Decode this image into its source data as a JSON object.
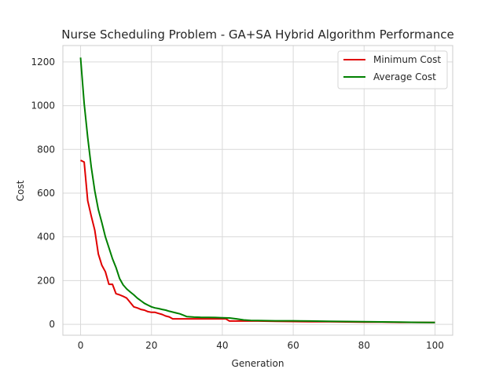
{
  "chart_data": {
    "type": "line",
    "title": "Nurse Scheduling Problem - GA+SA Hybrid Algorithm Performance",
    "xlabel": "Generation",
    "ylabel": "Cost",
    "xlim": [
      -5,
      105
    ],
    "ylim": [
      -50,
      1275
    ],
    "xticks": [
      0,
      20,
      40,
      60,
      80,
      100
    ],
    "yticks": [
      0,
      200,
      400,
      600,
      800,
      1000,
      1200
    ],
    "grid": true,
    "legend_position": "top-right",
    "series": [
      {
        "name": "Minimum Cost",
        "color": "#e00000",
        "x": [
          0,
          1,
          2,
          3,
          4,
          5,
          6,
          7,
          8,
          9,
          10,
          11,
          12,
          13,
          14,
          15,
          16,
          17,
          18,
          19,
          20,
          21,
          22,
          23,
          24,
          25,
          26,
          27,
          28,
          29,
          30,
          32,
          34,
          36,
          38,
          40,
          41,
          42,
          44,
          46,
          48,
          50,
          55,
          60,
          65,
          70,
          75,
          80,
          85,
          90,
          95,
          100
        ],
        "values": [
          750,
          742,
          565,
          495,
          430,
          322,
          270,
          240,
          183,
          183,
          140,
          135,
          128,
          120,
          100,
          80,
          75,
          68,
          65,
          58,
          55,
          55,
          50,
          45,
          38,
          34,
          25,
          25,
          25,
          25,
          25,
          25,
          25,
          25,
          25,
          25,
          25,
          15,
          15,
          15,
          15,
          15,
          14,
          13,
          12,
          12,
          11,
          10,
          10,
          9,
          9,
          8
        ]
      },
      {
        "name": "Average Cost",
        "color": "#008000",
        "x": [
          0,
          1,
          2,
          3,
          4,
          5,
          6,
          7,
          8,
          9,
          10,
          11,
          12,
          13,
          14,
          15,
          16,
          17,
          18,
          19,
          20,
          21,
          22,
          23,
          24,
          25,
          26,
          27,
          28,
          29,
          30,
          32,
          34,
          36,
          38,
          40,
          42,
          44,
          46,
          48,
          50,
          55,
          60,
          65,
          70,
          75,
          80,
          85,
          90,
          95,
          100
        ],
        "values": [
          1220,
          1010,
          855,
          720,
          610,
          525,
          465,
          400,
          350,
          300,
          260,
          210,
          180,
          162,
          148,
          135,
          120,
          108,
          96,
          88,
          80,
          75,
          72,
          68,
          65,
          60,
          56,
          52,
          48,
          42,
          35,
          33,
          32,
          32,
          31,
          30,
          29,
          25,
          20,
          18,
          17,
          16,
          16,
          15,
          14,
          13,
          12,
          11,
          10,
          9,
          8
        ]
      }
    ]
  }
}
